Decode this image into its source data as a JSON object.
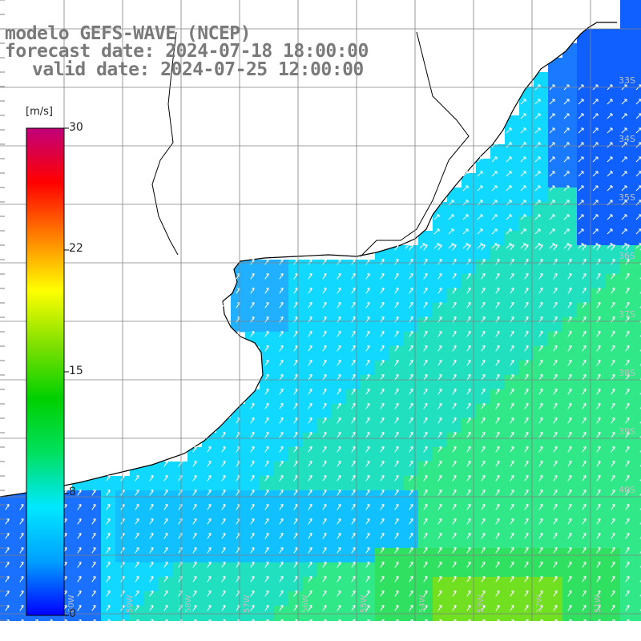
{
  "title": {
    "model": "modelo GEFS-WAVE (NCEP)",
    "forecast": "forecast date: 2024-07-18 18:00:00",
    "valid": "valid date: 2024-07-25 12:00:00"
  },
  "colorbar": {
    "units": "[m/s]",
    "ticks": [
      "30",
      "22",
      "15",
      "8",
      "0"
    ],
    "tick_values": [
      30,
      22,
      15,
      8,
      0
    ],
    "range": [
      0,
      30
    ],
    "colors": [
      "#0000ff",
      "#00a0ff",
      "#00e8ff",
      "#00e060",
      "#00d000",
      "#80e000",
      "#ffff00",
      "#ff8000",
      "#ff0000",
      "#c0007a"
    ]
  },
  "map": {
    "land_color": "#ffffff",
    "coastline_color": "#000000",
    "grid_color": "#808080",
    "vector_color": "#ffffff",
    "lat_labels": [
      "33S",
      "34S",
      "35S",
      "36S",
      "37S",
      "38S",
      "39S",
      "40S"
    ],
    "lon_labels": [
      "60W",
      "59W",
      "58W",
      "57W",
      "56W",
      "55W",
      "54W",
      "53W",
      "52W",
      "51W"
    ]
  }
}
